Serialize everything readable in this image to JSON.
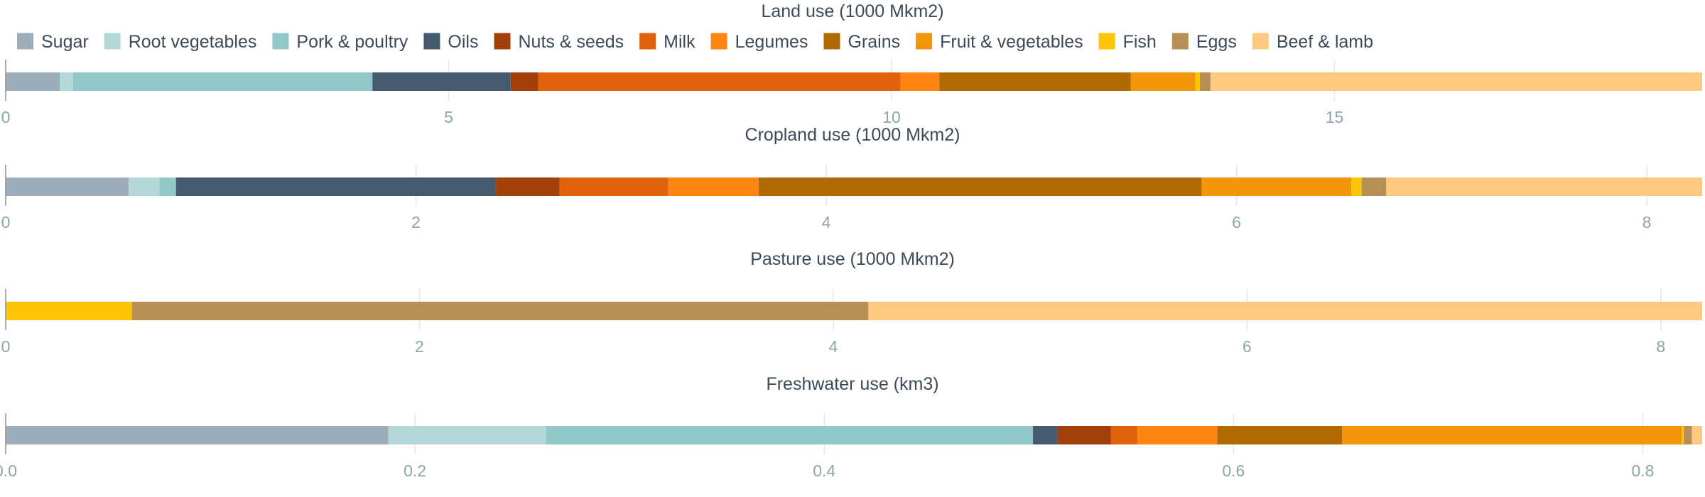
{
  "chart_data": {
    "type": "bar",
    "orientation": "horizontal-stacked",
    "legend_position": "top-left",
    "colors": {
      "Sugar": "#9eadba",
      "Root vegetables": "#b4d8d8",
      "Pork & poultry": "#93c8c8",
      "Oils": "#465a6e",
      "Nuts & seeds": "#a2400b",
      "Milk": "#e0620d",
      "Legumes": "#fd8613",
      "Grains": "#b06a02",
      "Fruit & vegetables": "#f2950b",
      "Fish": "#ffc505",
      "Eggs": "#b68f57",
      "Beef & lamb": "#ffc87f"
    },
    "legend": [
      "Sugar",
      "Root vegetables",
      "Pork & poultry",
      "Oils",
      "Nuts & seeds",
      "Milk",
      "Legumes",
      "Grains",
      "Fruit & vegetables",
      "Fish",
      "Eggs",
      "Beef & lamb"
    ],
    "panels": [
      {
        "title": "Land use (1000 Mkm2)",
        "xlim": [
          0,
          19.15
        ],
        "ticks": [
          0,
          5,
          10,
          15
        ],
        "tick_labels": [
          "0",
          "5",
          "10",
          "15"
        ],
        "segments": [
          {
            "name": "Sugar",
            "value": 0.61
          },
          {
            "name": "Root vegetables",
            "value": 0.15
          },
          {
            "name": "Pork & poultry",
            "value": 3.38
          },
          {
            "name": "Oils",
            "value": 1.56
          },
          {
            "name": "Nuts & seeds",
            "value": 0.31
          },
          {
            "name": "Milk",
            "value": 4.09
          },
          {
            "name": "Legumes",
            "value": 0.44
          },
          {
            "name": "Grains",
            "value": 2.16
          },
          {
            "name": "Fruit & vegetables",
            "value": 0.73
          },
          {
            "name": "Fish",
            "value": 0.05
          },
          {
            "name": "Eggs",
            "value": 0.12
          },
          {
            "name": "Beef & lamb",
            "value": 5.55
          }
        ]
      },
      {
        "title": "Cropland use (1000 Mkm2)",
        "xlim": [
          0,
          8.27
        ],
        "ticks": [
          0,
          2,
          4,
          6,
          8
        ],
        "tick_labels": [
          "0",
          "2",
          "4",
          "6",
          "8"
        ],
        "segments": [
          {
            "name": "Sugar",
            "value": 0.6
          },
          {
            "name": "Root vegetables",
            "value": 0.15
          },
          {
            "name": "Pork & poultry",
            "value": 0.08
          },
          {
            "name": "Oils",
            "value": 1.56
          },
          {
            "name": "Nuts & seeds",
            "value": 0.31
          },
          {
            "name": "Milk",
            "value": 0.53
          },
          {
            "name": "Legumes",
            "value": 0.44
          },
          {
            "name": "Grains",
            "value": 2.16
          },
          {
            "name": "Fruit & vegetables",
            "value": 0.73
          },
          {
            "name": "Fish",
            "value": 0.05
          },
          {
            "name": "Eggs",
            "value": 0.12
          },
          {
            "name": "Beef & lamb",
            "value": 1.54
          }
        ]
      },
      {
        "title": "Pasture use (1000 Mkm2)",
        "xlim": [
          0,
          8.2
        ],
        "ticks": [
          0,
          2,
          4,
          6,
          8
        ],
        "tick_labels": [
          "0",
          "2",
          "4",
          "6",
          "8"
        ],
        "segments": [
          {
            "name": "Fish",
            "value": 0.61
          },
          {
            "name": "Eggs",
            "value": 3.56
          },
          {
            "name": "Beef & lamb",
            "value": 4.03
          }
        ]
      },
      {
        "title": "Freshwater use (km3)",
        "xlim": [
          0,
          0.829
        ],
        "ticks": [
          0,
          0.2,
          0.4,
          0.6,
          0.8
        ],
        "tick_labels": [
          "0.0",
          "0.2",
          "0.4",
          "0.6",
          "0.8"
        ],
        "segments": [
          {
            "name": "Sugar",
            "value": 0.187
          },
          {
            "name": "Root vegetables",
            "value": 0.077
          },
          {
            "name": "Pork & poultry",
            "value": 0.238
          },
          {
            "name": "Oils",
            "value": 0.012
          },
          {
            "name": "Nuts & seeds",
            "value": 0.026
          },
          {
            "name": "Milk",
            "value": 0.013
          },
          {
            "name": "Legumes",
            "value": 0.039
          },
          {
            "name": "Grains",
            "value": 0.061
          },
          {
            "name": "Fruit & vegetables",
            "value": 0.166
          },
          {
            "name": "Fish",
            "value": 0.001
          },
          {
            "name": "Eggs",
            "value": 0.004
          },
          {
            "name": "Beef & lamb",
            "value": 0.005
          }
        ]
      }
    ]
  }
}
